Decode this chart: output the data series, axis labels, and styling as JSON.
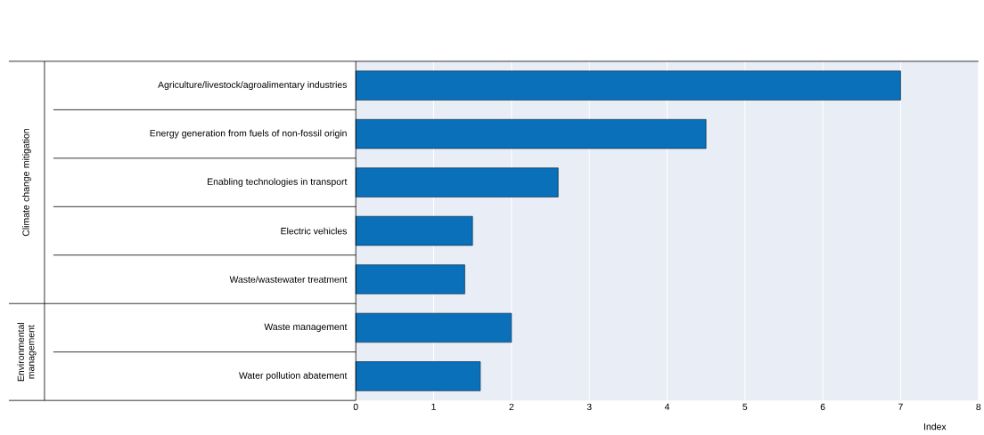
{
  "chart_data": {
    "type": "bar",
    "orientation": "horizontal",
    "categories": [
      "Agriculture/livestock/agroalimentary industries",
      "Energy generation from fuels of non-fossil origin",
      "Enabling technologies in transport",
      "Electric vehicles",
      "Waste/wastewater treatment",
      "Waste management",
      "Water pollution abatement"
    ],
    "values": [
      7.0,
      4.5,
      2.6,
      1.5,
      1.4,
      2.0,
      1.6
    ],
    "color": "#0a70ba",
    "xlim": [
      0,
      8
    ],
    "xticks": [
      0,
      1,
      2,
      3,
      4,
      5,
      6,
      7,
      8
    ],
    "xlabel": "Index",
    "grid": "x",
    "annotations": [
      "Climate change mitigation",
      "Environmental management"
    ]
  }
}
